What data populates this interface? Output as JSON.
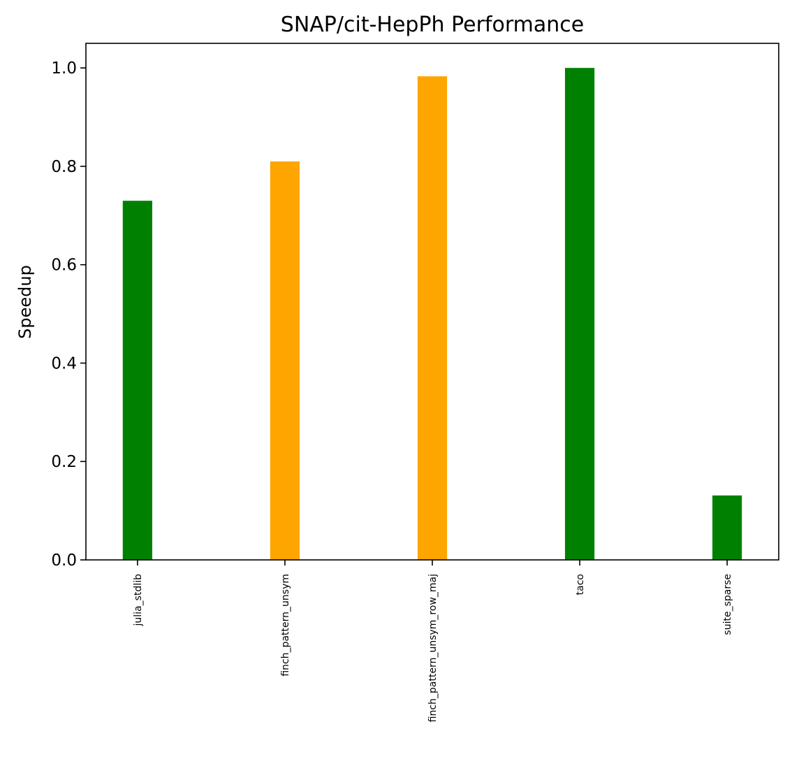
{
  "chart_data": {
    "type": "bar",
    "title": "SNAP/cit-HepPh Performance",
    "xlabel": "",
    "ylabel": "Speedup",
    "categories": [
      "julia_stdlib",
      "finch_pattern_unsym",
      "finch_pattern_unsym_row_maj",
      "taco",
      "suite_sparse"
    ],
    "values": [
      0.73,
      0.81,
      0.983,
      1.0,
      0.131
    ],
    "bar_colors": [
      "#008000",
      "#FFA500",
      "#FFA500",
      "#008000",
      "#008000"
    ],
    "ylim": [
      0,
      1.05
    ],
    "yticks": [
      0.0,
      0.2,
      0.4,
      0.6,
      0.8,
      1.0
    ],
    "ytick_labels": [
      "0.0",
      "0.2",
      "0.4",
      "0.6",
      "0.8",
      "1.0"
    ],
    "grid": false,
    "legend": "none"
  }
}
